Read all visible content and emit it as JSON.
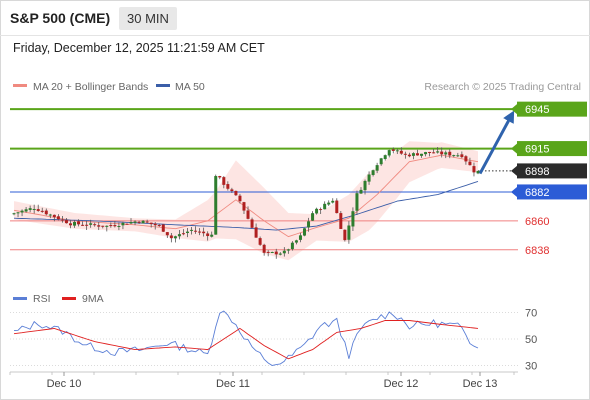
{
  "header": {
    "title": "S&P 500 (CME)",
    "timeframe": "30 MIN",
    "datetime": "Friday, December 12, 2025 11:21:59 AM CET"
  },
  "chart_data": [
    {
      "type": "candlestick",
      "legend": [
        {
          "name": "MA 20 + Bollinger Bands",
          "color": "#f08a80"
        },
        {
          "name": "MA 50",
          "color": "#3b5ea8"
        }
      ],
      "legend_placement": "top-left",
      "source": "Research © 2025 Trading Central",
      "ylim": [
        6815,
        6955
      ],
      "grid": false,
      "x_labels": [
        "Dec 10",
        "Dec 11",
        "Dec 12",
        "Dec 13"
      ],
      "last_price": 6898,
      "levels": [
        {
          "value": 6945,
          "label": "6945",
          "type": "resistance",
          "color": "#5aa51a"
        },
        {
          "value": 6915,
          "label": "6915",
          "type": "resistance",
          "color": "#5aa51a"
        },
        {
          "value": 6898,
          "label": "6898",
          "type": "last",
          "color": "#2b2b2b"
        },
        {
          "value": 6882,
          "label": "6882",
          "type": "pivot",
          "color": "#2c5cd6"
        },
        {
          "value": 6860,
          "label": "6860",
          "type": "support",
          "color": "#f08080"
        },
        {
          "value": 6838,
          "label": "6838",
          "type": "support",
          "color": "#f08080"
        }
      ],
      "forecast_arrow": {
        "from": 6896,
        "to": 6941,
        "direction": "up",
        "color": "#2f63ad"
      },
      "anchors": [
        [
          0,
          6865
        ],
        [
          6,
          6870
        ],
        [
          15,
          6858
        ],
        [
          24,
          6856
        ],
        [
          32,
          6860
        ],
        [
          37,
          6856
        ],
        [
          40,
          6847
        ],
        [
          45,
          6853
        ],
        [
          50,
          6849
        ],
        [
          51,
          6895
        ],
        [
          57,
          6875
        ],
        [
          63,
          6835
        ],
        [
          68,
          6836
        ],
        [
          72,
          6848
        ],
        [
          75,
          6866
        ],
        [
          80,
          6876
        ],
        [
          83,
          6845
        ],
        [
          86,
          6880
        ],
        [
          90,
          6900
        ],
        [
          94,
          6915
        ],
        [
          98,
          6910
        ],
        [
          104,
          6912
        ],
        [
          112,
          6910
        ],
        [
          115,
          6898
        ]
      ],
      "moving_averages": {
        "ma20": [
          [
            0,
            6868
          ],
          [
            15,
            6860
          ],
          [
            30,
            6857
          ],
          [
            40,
            6854
          ],
          [
            48,
            6860
          ],
          [
            55,
            6876
          ],
          [
            62,
            6860
          ],
          [
            68,
            6848
          ],
          [
            75,
            6855
          ],
          [
            83,
            6862
          ],
          [
            90,
            6880
          ],
          [
            98,
            6905
          ],
          [
            106,
            6910
          ],
          [
            115,
            6905
          ]
        ],
        "ma50": [
          [
            0,
            6862
          ],
          [
            20,
            6860
          ],
          [
            40,
            6857
          ],
          [
            55,
            6855
          ],
          [
            65,
            6853
          ],
          [
            75,
            6856
          ],
          [
            85,
            6865
          ],
          [
            95,
            6875
          ],
          [
            105,
            6880
          ],
          [
            115,
            6890
          ]
        ],
        "bb_half_width": [
          [
            0,
            7
          ],
          [
            15,
            6
          ],
          [
            30,
            5
          ],
          [
            40,
            7
          ],
          [
            50,
            18
          ],
          [
            55,
            30
          ],
          [
            62,
            25
          ],
          [
            68,
            18
          ],
          [
            75,
            10
          ],
          [
            83,
            18
          ],
          [
            88,
            22
          ],
          [
            95,
            18
          ],
          [
            105,
            10
          ],
          [
            115,
            8
          ]
        ]
      }
    },
    {
      "type": "line",
      "legend": [
        {
          "name": "RSI",
          "color": "#5b7fd6"
        },
        {
          "name": "9MA",
          "color": "#e02020"
        }
      ],
      "ylim": [
        25,
        75
      ],
      "y_ticks": [
        30,
        50,
        70
      ],
      "series": [
        {
          "name": "RSI",
          "anchors": [
            [
              0,
              55
            ],
            [
              6,
              62
            ],
            [
              12,
              56
            ],
            [
              18,
              45
            ],
            [
              25,
              40
            ],
            [
              32,
              42
            ],
            [
              38,
              47
            ],
            [
              44,
              42
            ],
            [
              48,
              38
            ],
            [
              51,
              72
            ],
            [
              54,
              65
            ],
            [
              58,
              48
            ],
            [
              63,
              30
            ],
            [
              67,
              33
            ],
            [
              72,
              45
            ],
            [
              76,
              60
            ],
            [
              80,
              63
            ],
            [
              83,
              38
            ],
            [
              86,
              58
            ],
            [
              90,
              66
            ],
            [
              94,
              70
            ],
            [
              98,
              60
            ],
            [
              104,
              62
            ],
            [
              110,
              60
            ],
            [
              113,
              48
            ],
            [
              115,
              46
            ]
          ]
        },
        {
          "name": "9MA",
          "anchors": [
            [
              0,
              54
            ],
            [
              10,
              58
            ],
            [
              20,
              48
            ],
            [
              30,
              42
            ],
            [
              40,
              44
            ],
            [
              48,
              42
            ],
            [
              52,
              50
            ],
            [
              56,
              58
            ],
            [
              62,
              45
            ],
            [
              68,
              35
            ],
            [
              74,
              42
            ],
            [
              80,
              55
            ],
            [
              86,
              58
            ],
            [
              92,
              64
            ],
            [
              98,
              64
            ],
            [
              106,
              61
            ],
            [
              115,
              58
            ]
          ]
        }
      ]
    }
  ]
}
